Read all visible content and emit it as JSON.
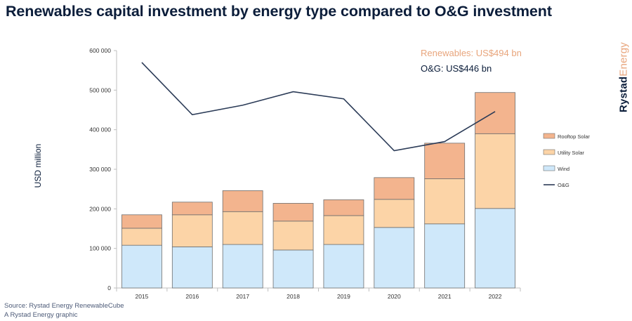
{
  "title": "Renewables capital investment by energy type compared to O&G investment",
  "brand": {
    "part1": "Rystad",
    "part2": "Energy"
  },
  "annotations": {
    "renewables": "Renewables: US$494 bn",
    "og": "O&G: US$446 bn"
  },
  "source": {
    "line1": "Source: Rystad Energy RenewableCube",
    "line2": "A Rystad Energy graphic"
  },
  "colors": {
    "wind": "#cfe8fa",
    "utility_solar": "#fcd4a7",
    "rooftop_solar": "#f3b48e",
    "og_line": "#2b3b57",
    "bar_border": "#6f6f6f"
  },
  "chart_data": {
    "type": "bar",
    "stacked": true,
    "categories": [
      "2015",
      "2016",
      "2017",
      "2018",
      "2019",
      "2020",
      "2021",
      "2022"
    ],
    "series": [
      {
        "name": "Wind",
        "values": [
          108000,
          104000,
          110000,
          96000,
          110000,
          153000,
          162000,
          201000
        ]
      },
      {
        "name": "Utility Solar",
        "values": [
          43000,
          81000,
          83000,
          73000,
          73000,
          71000,
          114000,
          189000
        ]
      },
      {
        "name": "Rooftop Solar",
        "values": [
          34000,
          32000,
          53000,
          45000,
          40000,
          55000,
          90000,
          104000
        ]
      }
    ],
    "line_series": {
      "name": "O&G",
      "values": [
        570000,
        438000,
        462000,
        496000,
        478000,
        347000,
        370000,
        446000
      ]
    },
    "ylabel": "USD million",
    "ylim": [
      0,
      600000
    ],
    "yticks": [
      "0",
      "100 000",
      "200 000",
      "300 000",
      "400 000",
      "500 000",
      "600 000"
    ],
    "legend_position": "right",
    "grid": false
  }
}
